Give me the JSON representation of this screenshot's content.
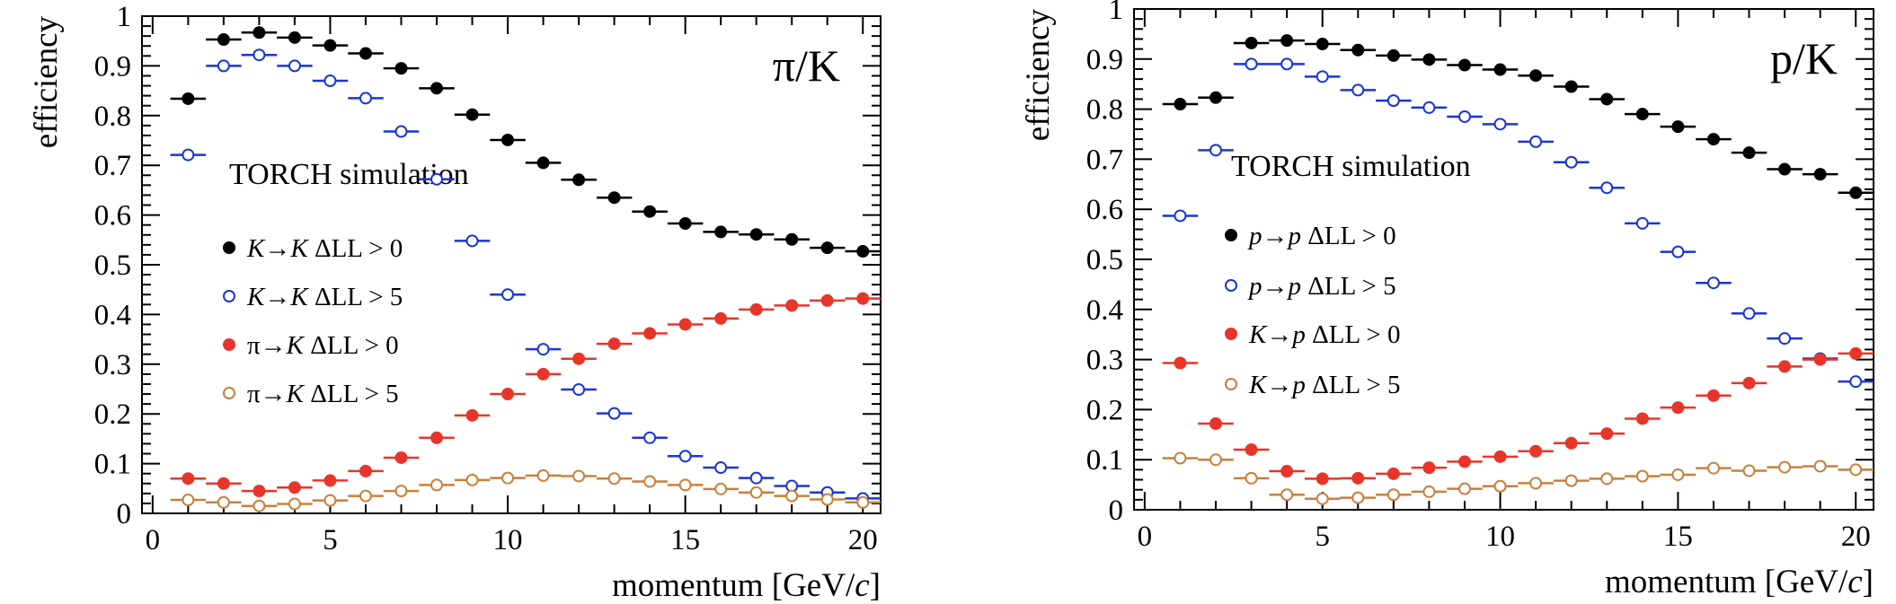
{
  "chart_data": [
    {
      "type": "scatter",
      "panel_label": "π/K",
      "annotation": "TORCH simulation",
      "xlabel": "momentum [GeV/c]",
      "ylabel": "efficiency",
      "xlim": [
        -0.3,
        20.5
      ],
      "ylim": [
        0,
        1
      ],
      "xticks": [
        "0",
        "5",
        "10",
        "15",
        "20"
      ],
      "yticks": [
        "0",
        "0.1",
        "0.2",
        "0.3",
        "0.4",
        "0.5",
        "0.6",
        "0.7",
        "0.8",
        "0.9",
        "1"
      ],
      "grid": false,
      "legend_position": "middle-left",
      "series": [
        {
          "name": "K→K  ΔLL > 0",
          "color": "#000000",
          "marker": "filled",
          "x": [
            1,
            2,
            3,
            4,
            5,
            6,
            7,
            8,
            9,
            10,
            11,
            12,
            13,
            14,
            15,
            16,
            17,
            18,
            19,
            20
          ],
          "y": [
            0.834,
            0.953,
            0.967,
            0.957,
            0.941,
            0.925,
            0.895,
            0.855,
            0.802,
            0.751,
            0.705,
            0.671,
            0.635,
            0.607,
            0.583,
            0.566,
            0.561,
            0.551,
            0.534,
            0.527
          ]
        },
        {
          "name": "K→K  ΔLL > 5",
          "color": "#1a35d8",
          "marker": "open",
          "x": [
            1,
            2,
            3,
            4,
            5,
            6,
            7,
            8,
            9,
            10,
            11,
            12,
            13,
            14,
            15,
            16,
            17,
            18,
            19,
            20
          ],
          "y": [
            0.721,
            0.9,
            0.922,
            0.9,
            0.87,
            0.835,
            0.768,
            0.672,
            0.548,
            0.44,
            0.33,
            0.249,
            0.201,
            0.152,
            0.115,
            0.092,
            0.071,
            0.055,
            0.042,
            0.03
          ]
        },
        {
          "name": "π→K  ΔLL > 0",
          "color": "#e8352a",
          "marker": "filled",
          "x": [
            1,
            2,
            3,
            4,
            5,
            6,
            7,
            8,
            9,
            10,
            11,
            12,
            13,
            14,
            15,
            16,
            17,
            18,
            19,
            20
          ],
          "y": [
            0.07,
            0.06,
            0.045,
            0.052,
            0.066,
            0.085,
            0.112,
            0.152,
            0.197,
            0.24,
            0.28,
            0.311,
            0.341,
            0.362,
            0.38,
            0.392,
            0.41,
            0.418,
            0.428,
            0.432
          ]
        },
        {
          "name": "π→K  ΔLL > 5",
          "color": "#c8803c",
          "marker": "open",
          "x": [
            1,
            2,
            3,
            4,
            5,
            6,
            7,
            8,
            9,
            10,
            11,
            12,
            13,
            14,
            15,
            16,
            17,
            18,
            19,
            20
          ],
          "y": [
            0.027,
            0.022,
            0.015,
            0.019,
            0.026,
            0.035,
            0.045,
            0.057,
            0.067,
            0.071,
            0.076,
            0.075,
            0.07,
            0.064,
            0.057,
            0.049,
            0.042,
            0.035,
            0.028,
            0.022
          ]
        }
      ]
    },
    {
      "type": "scatter",
      "panel_label": "p/K",
      "annotation": "TORCH simulation",
      "xlabel": "momentum [GeV/c]",
      "ylabel": "efficiency",
      "xlim": [
        -0.3,
        20.5
      ],
      "ylim": [
        0,
        1
      ],
      "xticks": [
        "0",
        "5",
        "10",
        "15",
        "20"
      ],
      "yticks": [
        "0",
        "0.1",
        "0.2",
        "0.3",
        "0.4",
        "0.5",
        "0.6",
        "0.7",
        "0.8",
        "0.9",
        "1"
      ],
      "grid": false,
      "legend_position": "middle-left",
      "series": [
        {
          "name": "p→p  ΔLL > 0",
          "color": "#000000",
          "marker": "filled",
          "x": [
            1,
            2,
            3,
            4,
            5,
            6,
            7,
            8,
            9,
            10,
            11,
            12,
            13,
            14,
            15,
            16,
            17,
            18,
            19,
            20
          ],
          "y": [
            0.81,
            0.823,
            0.932,
            0.937,
            0.93,
            0.918,
            0.907,
            0.899,
            0.888,
            0.879,
            0.867,
            0.845,
            0.82,
            0.79,
            0.765,
            0.74,
            0.713,
            0.68,
            0.67,
            0.633
          ]
        },
        {
          "name": "p→p  ΔLL > 5",
          "color": "#1a35d8",
          "marker": "open",
          "x": [
            1,
            2,
            3,
            4,
            5,
            6,
            7,
            8,
            9,
            10,
            11,
            12,
            13,
            14,
            15,
            16,
            17,
            18,
            19,
            20
          ],
          "y": [
            0.587,
            0.718,
            0.89,
            0.89,
            0.865,
            0.838,
            0.817,
            0.803,
            0.785,
            0.77,
            0.735,
            0.694,
            0.643,
            0.572,
            0.515,
            0.453,
            0.392,
            0.342,
            0.302,
            0.256
          ]
        },
        {
          "name": "K→p  ΔLL > 0",
          "color": "#e8352a",
          "marker": "filled",
          "x": [
            1,
            2,
            3,
            4,
            5,
            6,
            7,
            8,
            9,
            10,
            11,
            12,
            13,
            14,
            15,
            16,
            17,
            18,
            19,
            20
          ],
          "y": [
            0.293,
            0.172,
            0.12,
            0.077,
            0.062,
            0.063,
            0.072,
            0.084,
            0.096,
            0.106,
            0.117,
            0.133,
            0.152,
            0.182,
            0.204,
            0.228,
            0.253,
            0.286,
            0.3,
            0.312
          ]
        },
        {
          "name": "K→p  ΔLL > 5",
          "color": "#c8803c",
          "marker": "open",
          "x": [
            1,
            2,
            3,
            4,
            5,
            6,
            7,
            8,
            9,
            10,
            11,
            12,
            13,
            14,
            15,
            16,
            17,
            18,
            19,
            20
          ],
          "y": [
            0.103,
            0.1,
            0.063,
            0.03,
            0.022,
            0.024,
            0.03,
            0.036,
            0.042,
            0.047,
            0.053,
            0.058,
            0.062,
            0.067,
            0.07,
            0.083,
            0.078,
            0.085,
            0.087,
            0.08
          ]
        }
      ]
    }
  ]
}
